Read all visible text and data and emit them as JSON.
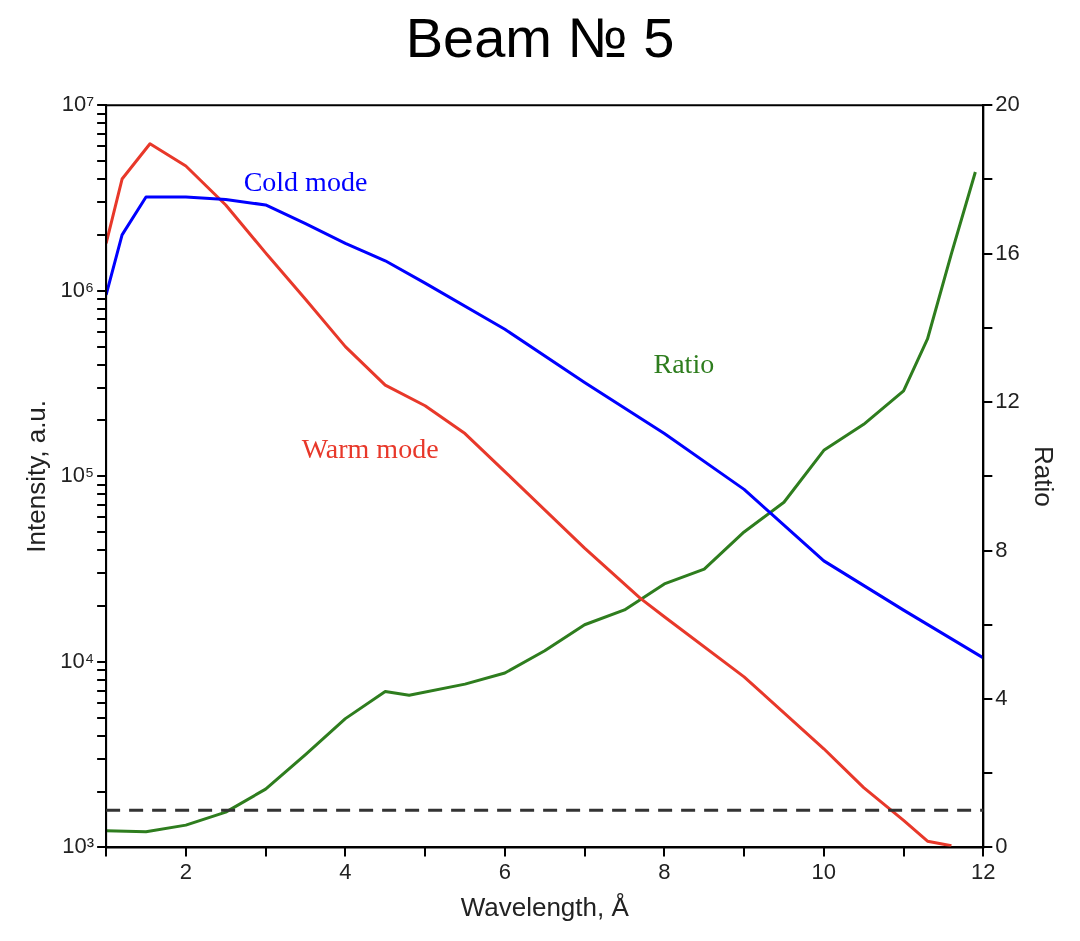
{
  "chart_data": {
    "type": "line",
    "title": "Beam № 5",
    "xlabel": "Wavelength, Å",
    "ylabel": "Intensity, a.u.",
    "y2label": "Ratio",
    "log": "y",
    "grid": false,
    "legend": false,
    "marker": "none",
    "line_style": "solid",
    "xlim": [
      1,
      12
    ],
    "xticks": [
      {
        "value": 1,
        "label": null
      },
      2,
      {
        "value": 3,
        "label": null
      },
      4,
      {
        "value": 5,
        "label": null
      },
      6,
      {
        "value": 7,
        "label": null
      },
      8,
      {
        "value": 9,
        "label": null
      },
      10,
      {
        "value": 11,
        "label": null
      },
      12
    ],
    "ylim": [
      1000,
      10000000
    ],
    "yticks": [
      {
        "value": 1000,
        "label": "10³"
      },
      {
        "value": 2000,
        "label": null
      },
      {
        "value": 3000,
        "label": null
      },
      {
        "value": 4000,
        "label": null
      },
      {
        "value": 5000,
        "label": null
      },
      {
        "value": 6000,
        "label": null
      },
      {
        "value": 7000,
        "label": null
      },
      {
        "value": 8000,
        "label": null
      },
      {
        "value": 9000,
        "label": null
      },
      {
        "value": 10000,
        "label": "10⁴"
      },
      {
        "value": 20000,
        "label": null
      },
      {
        "value": 30000,
        "label": null
      },
      {
        "value": 40000,
        "label": null
      },
      {
        "value": 50000,
        "label": null
      },
      {
        "value": 60000,
        "label": null
      },
      {
        "value": 70000,
        "label": null
      },
      {
        "value": 80000,
        "label": null
      },
      {
        "value": 90000,
        "label": null
      },
      {
        "value": 100000,
        "label": "10⁵"
      },
      {
        "value": 200000,
        "label": null
      },
      {
        "value": 300000,
        "label": null
      },
      {
        "value": 400000,
        "label": null
      },
      {
        "value": 500000,
        "label": null
      },
      {
        "value": 600000,
        "label": null
      },
      {
        "value": 700000,
        "label": null
      },
      {
        "value": 800000,
        "label": null
      },
      {
        "value": 900000,
        "label": null
      },
      {
        "value": 1000000,
        "label": "10⁶"
      },
      {
        "value": 2000000,
        "label": null
      },
      {
        "value": 3000000,
        "label": null
      },
      {
        "value": 4000000,
        "label": null
      },
      {
        "value": 5000000,
        "label": null
      },
      {
        "value": 6000000,
        "label": null
      },
      {
        "value": 7000000,
        "label": null
      },
      {
        "value": 8000000,
        "label": null
      },
      {
        "value": 9000000,
        "label": null
      },
      {
        "value": 10000000,
        "label": "10⁷"
      }
    ],
    "y2lim": [
      0,
      20
    ],
    "y2ticks": [
      0,
      {
        "value": 2,
        "label": null
      },
      4,
      {
        "value": 6,
        "label": null
      },
      8,
      {
        "value": 10,
        "label": null
      },
      12,
      {
        "value": 14,
        "label": null
      },
      16,
      {
        "value": 18,
        "label": null
      },
      20
    ],
    "ref_lines": [
      {
        "axis": "y2",
        "value": 1,
        "color": "#333333",
        "line_style": "dashed"
      }
    ],
    "series": [
      {
        "name": "Cold mode",
        "color": "#0000ff",
        "x": [
          1,
          1.2,
          1.5,
          2,
          2.5,
          3,
          3.5,
          4,
          4.5,
          5,
          6,
          7,
          8,
          9,
          10,
          11,
          12
        ],
        "values": [
          950000,
          2000000,
          3200000,
          3200000,
          3100000,
          2900000,
          2300000,
          1800000,
          1450000,
          1100000,
          620000,
          320000,
          170000,
          85000,
          35000,
          19000,
          10500
        ]
      },
      {
        "name": "Warm mode",
        "color": "#e8382a",
        "x": [
          1,
          1.2,
          1.55,
          2,
          2.5,
          3,
          3.5,
          4,
          4.5,
          5,
          5.5,
          6,
          7,
          7.7,
          8,
          9,
          10,
          10.5,
          11,
          11.3,
          11.6
        ],
        "values": [
          1800000,
          4000000,
          6200000,
          4700000,
          2900000,
          1600000,
          900000,
          500000,
          310000,
          240000,
          170000,
          106000,
          41000,
          22000,
          17500,
          8300,
          3400,
          2100,
          1400,
          1080,
          1020
        ]
      },
      {
        "name": "Ratio",
        "color": "#2e7d1e",
        "axis": "y2",
        "x": [
          1,
          1.5,
          2,
          2.5,
          3,
          3.5,
          4,
          4.5,
          4.8,
          5.5,
          6,
          6.5,
          7,
          7.5,
          8,
          8.5,
          9,
          9.5,
          10,
          10.5,
          11,
          11.3,
          11.6,
          11.9
        ],
        "values": [
          0.45,
          0.42,
          0.6,
          0.95,
          1.57,
          2.5,
          3.47,
          4.2,
          4.1,
          4.4,
          4.7,
          5.3,
          6.0,
          6.4,
          7.1,
          7.5,
          8.5,
          9.3,
          10.7,
          11.4,
          12.3,
          13.7,
          16,
          18.2
        ]
      }
    ]
  }
}
